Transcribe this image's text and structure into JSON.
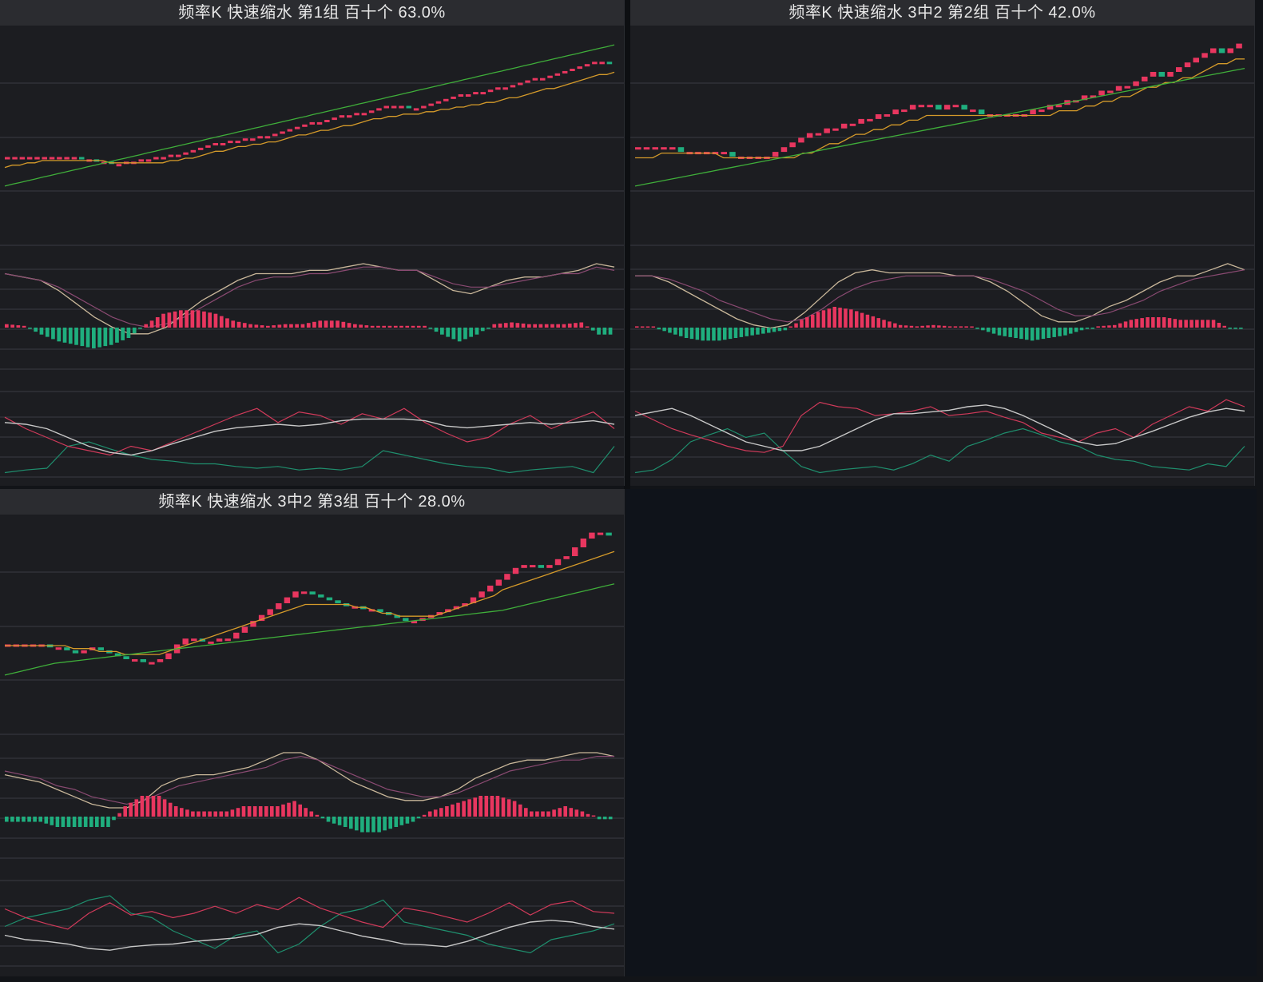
{
  "colors": {
    "up": "#e8365f",
    "down": "#1fae7e",
    "ma_short": "#d49a2a",
    "ma_long": "#3fae3a",
    "dif": "#c9b79a",
    "dea": "#8a4a72",
    "k_line": "#c8c8c8",
    "d_line": "#d03a5a",
    "j_line": "#1f8f6e",
    "grid": "#3a3c42",
    "panel_bg": "#1c1d21",
    "title_bg": "#2b2c30",
    "empty_bg": "#0f131a"
  },
  "chart_data": [
    {
      "type": "candlestick",
      "title": "频率K  快速缩水  第1组  百十个  63.0%",
      "price_close": [
        52,
        52,
        52,
        52,
        52,
        52,
        52,
        52,
        52,
        52,
        51,
        51,
        50,
        50,
        49,
        49,
        50,
        50,
        51,
        51,
        52,
        52,
        53,
        53,
        54,
        55,
        56,
        57,
        58,
        58,
        59,
        59,
        60,
        60,
        61,
        61,
        62,
        63,
        64,
        65,
        66,
        67,
        67,
        68,
        69,
        70,
        70,
        71,
        71,
        72,
        73,
        74,
        74,
        74,
        73,
        73,
        74,
        75,
        76,
        77,
        78,
        79,
        79,
        80,
        80,
        81,
        82,
        82,
        83,
        84,
        85,
        86,
        86,
        87,
        88,
        89,
        90,
        91,
        92,
        93,
        93,
        92
      ],
      "ma_short": [
        48,
        49,
        49,
        50,
        50,
        51,
        51,
        51,
        51,
        51,
        51,
        51,
        51,
        51,
        50,
        50,
        50,
        50,
        50,
        50,
        50,
        50,
        51,
        51,
        52,
        52,
        53,
        54,
        55,
        55,
        56,
        57,
        57,
        58,
        58,
        59,
        59,
        60,
        61,
        62,
        62,
        63,
        64,
        64,
        65,
        66,
        66,
        67,
        68,
        69,
        69,
        70,
        70,
        71,
        71,
        71,
        72,
        72,
        73,
        73,
        74,
        74,
        75,
        75,
        76,
        76,
        77,
        78,
        78,
        79,
        80,
        81,
        82,
        82,
        83,
        84,
        85,
        86,
        87,
        88,
        88,
        89
      ],
      "ma_long": [
        40,
        40.8,
        41.5,
        42.3,
        43,
        43.8,
        44.5,
        45.3,
        46,
        46.8,
        47.5,
        48.3,
        49,
        49.8,
        50.5,
        51.3,
        52,
        52.8,
        53.5,
        54.3,
        55,
        55.8,
        56.5,
        57.3,
        58,
        58.8,
        59.5,
        60.3,
        61,
        61.8,
        62.5,
        63.3,
        64,
        64.8,
        65.5,
        66.3,
        67,
        67.8,
        68.5,
        69.3,
        70,
        70.8,
        71.5,
        72.3,
        73,
        73.8,
        74.5,
        75.3,
        76,
        76.8,
        77.5,
        78.3,
        79,
        79.8,
        80.5,
        81.3,
        82,
        82.8,
        83.5,
        84.3,
        85,
        85.8,
        86.5,
        87.3,
        88,
        88.8,
        89.5,
        90.3,
        91,
        91.8,
        92.5,
        93.3,
        94,
        94.8,
        95.5,
        96.3,
        97,
        97.8,
        98.5,
        99.3,
        100,
        100.8
      ],
      "macd_dif": [
        0.8,
        0.7,
        0.6,
        0.3,
        -0.1,
        -0.5,
        -0.8,
        -1,
        -1,
        -0.8,
        -0.4,
        0,
        0.3,
        0.6,
        0.8,
        0.8,
        0.8,
        0.9,
        0.9,
        1,
        1.1,
        1,
        0.9,
        0.9,
        0.6,
        0.3,
        0.2,
        0.4,
        0.6,
        0.7,
        0.7,
        0.8,
        0.9,
        1.1,
        1
      ],
      "macd_dea": [
        0.8,
        0.7,
        0.6,
        0.4,
        0.1,
        -0.2,
        -0.5,
        -0.7,
        -0.8,
        -0.7,
        -0.5,
        -0.2,
        0.1,
        0.4,
        0.6,
        0.7,
        0.7,
        0.8,
        0.8,
        0.9,
        1,
        1,
        0.9,
        0.9,
        0.7,
        0.5,
        0.4,
        0.4,
        0.5,
        0.6,
        0.7,
        0.8,
        0.8,
        1,
        0.9
      ],
      "macd_hist": [
        0.1,
        0.05,
        -0.2,
        -0.4,
        -0.5,
        -0.6,
        -0.5,
        -0.3,
        0.1,
        0.4,
        0.5,
        0.5,
        0.4,
        0.2,
        0.1,
        0.05,
        0.1,
        0.1,
        0.2,
        0.2,
        0.1,
        0.05,
        0.05,
        0.05,
        0.05,
        -0.2,
        -0.4,
        -0.2,
        0.1,
        0.15,
        0.1,
        0.1,
        0.1,
        0.15,
        -0.2
      ],
      "kdj_k": [
        62,
        60,
        55,
        45,
        35,
        28,
        25,
        30,
        38,
        45,
        52,
        56,
        58,
        60,
        58,
        60,
        64,
        66,
        66,
        66,
        64,
        58,
        56,
        58,
        60,
        62,
        60,
        62,
        64,
        60
      ],
      "kdj_d": [
        68,
        55,
        45,
        35,
        30,
        25,
        35,
        30,
        40,
        50,
        60,
        70,
        78,
        62,
        74,
        70,
        60,
        72,
        66,
        78,
        62,
        50,
        40,
        45,
        60,
        70,
        55,
        65,
        74,
        55
      ],
      "kdj_j": [
        5,
        8,
        10,
        35,
        40,
        32,
        25,
        20,
        18,
        15,
        15,
        12,
        10,
        12,
        8,
        10,
        8,
        12,
        30,
        25,
        20,
        15,
        12,
        10,
        5,
        8,
        10,
        12,
        5,
        35
      ]
    },
    {
      "type": "candlestick",
      "title": "频率K  快速缩水  3中2 第2组  百十个  42.0%",
      "price_close": [
        50,
        50,
        50,
        50,
        50,
        49,
        49,
        49,
        49,
        49,
        49,
        48,
        48,
        48,
        48,
        48,
        49,
        50,
        51,
        52,
        53,
        53,
        54,
        54,
        55,
        55,
        56,
        56,
        57,
        57,
        58,
        58,
        59,
        59,
        59,
        58,
        59,
        59,
        58,
        58,
        57,
        57,
        57,
        57,
        57,
        57,
        58,
        58,
        59,
        59,
        60,
        60,
        61,
        61,
        62,
        62,
        63,
        63,
        64,
        65,
        66,
        65,
        66,
        67,
        68,
        69,
        70,
        71,
        70,
        71,
        72
      ],
      "ma_short": [
        48,
        48,
        48,
        49,
        49,
        49,
        49,
        49,
        49,
        49,
        48,
        48,
        48,
        48,
        48,
        48,
        48,
        48,
        48,
        49,
        49,
        50,
        51,
        51,
        52,
        53,
        53,
        54,
        54,
        55,
        55,
        56,
        56,
        57,
        57,
        57,
        57,
        57,
        57,
        57,
        57,
        57,
        57,
        57,
        57,
        57,
        57,
        57,
        58,
        58,
        58,
        59,
        59,
        60,
        60,
        61,
        61,
        62,
        63,
        63,
        64,
        64,
        65,
        65,
        66,
        67,
        68,
        68,
        69,
        69
      ],
      "ma_long": [
        42,
        42.5,
        43,
        43.5,
        44,
        44.5,
        45,
        45.5,
        46,
        46.5,
        47,
        47.5,
        48,
        48.5,
        49,
        49.5,
        50,
        50.5,
        51,
        51.5,
        52,
        52.5,
        53,
        53.5,
        54,
        54.5,
        55,
        55.5,
        56,
        56.5,
        57,
        57.5,
        58,
        58.5,
        59,
        59.5,
        60,
        60.5,
        61,
        61.5,
        62,
        62.5,
        63,
        63.5,
        64,
        64.5,
        65,
        65.5,
        66,
        66.5,
        67
      ],
      "macd_dif": [
        0.8,
        0.8,
        0.6,
        0.3,
        0,
        -0.3,
        -0.6,
        -0.8,
        -0.9,
        -0.8,
        -0.4,
        0.1,
        0.6,
        0.9,
        1,
        0.9,
        0.9,
        0.9,
        0.9,
        0.8,
        0.8,
        0.6,
        0.3,
        -0.1,
        -0.5,
        -0.7,
        -0.7,
        -0.5,
        -0.2,
        0,
        0.3,
        0.6,
        0.8,
        0.8,
        1,
        1.2,
        1
      ],
      "macd_dea": [
        0.8,
        0.8,
        0.7,
        0.5,
        0.3,
        0,
        -0.2,
        -0.4,
        -0.6,
        -0.7,
        -0.6,
        -0.3,
        0.1,
        0.4,
        0.6,
        0.7,
        0.8,
        0.8,
        0.8,
        0.8,
        0.8,
        0.7,
        0.5,
        0.3,
        0,
        -0.3,
        -0.5,
        -0.5,
        -0.4,
        -0.2,
        0,
        0.3,
        0.5,
        0.7,
        0.8,
        0.9,
        1
      ],
      "macd_hist": [
        0.05,
        0,
        -0.2,
        -0.4,
        -0.5,
        -0.5,
        -0.4,
        -0.3,
        -0.2,
        -0.1,
        0.3,
        0.6,
        0.8,
        0.7,
        0.5,
        0.3,
        0.1,
        0.05,
        0.1,
        0.05,
        0.05,
        -0.1,
        -0.3,
        -0.4,
        -0.5,
        -0.4,
        -0.3,
        -0.1,
        0.05,
        0.1,
        0.3,
        0.4,
        0.4,
        0.3,
        0.3,
        0.3,
        -0.05
      ],
      "kdj_k": [
        70,
        74,
        78,
        70,
        60,
        50,
        40,
        35,
        30,
        30,
        35,
        45,
        55,
        65,
        72,
        72,
        74,
        76,
        80,
        82,
        78,
        70,
        60,
        50,
        40,
        36,
        38,
        45,
        52,
        60,
        68,
        74,
        78,
        75
      ],
      "kdj_d": [
        75,
        65,
        55,
        48,
        42,
        35,
        30,
        28,
        35,
        70,
        85,
        80,
        78,
        70,
        72,
        75,
        80,
        70,
        72,
        75,
        68,
        62,
        50,
        45,
        40,
        50,
        55,
        45,
        60,
        70,
        80,
        75,
        88,
        80
      ],
      "kdj_j": [
        5,
        8,
        20,
        40,
        48,
        55,
        45,
        50,
        30,
        12,
        5,
        8,
        10,
        12,
        8,
        15,
        25,
        18,
        35,
        42,
        50,
        55,
        48,
        40,
        35,
        25,
        20,
        18,
        12,
        10,
        8,
        15,
        12,
        35
      ]
    },
    {
      "type": "candlestick",
      "title": "频率K  快速缩水  3中2 第3组  百十个  28.0%",
      "price_close": [
        40,
        40,
        40,
        40,
        40,
        39,
        39,
        38,
        37,
        38,
        39,
        38,
        37,
        36,
        35,
        35,
        34,
        34,
        35,
        37,
        40,
        42,
        42,
        41,
        41,
        42,
        42,
        44,
        46,
        48,
        50,
        52,
        54,
        56,
        58,
        58,
        57,
        56,
        55,
        54,
        53,
        53,
        52,
        52,
        51,
        50,
        49,
        48,
        48,
        49,
        50,
        51,
        52,
        53,
        54,
        56,
        58,
        60,
        62,
        64,
        66,
        67,
        67,
        66,
        67,
        69,
        70,
        73,
        76,
        78,
        78,
        77
      ],
      "ma_short": [
        40,
        40,
        40,
        40,
        40,
        40,
        40,
        40,
        39,
        39,
        39,
        38,
        38,
        38,
        37,
        37,
        37,
        37,
        37,
        38,
        39,
        40,
        41,
        42,
        43,
        44,
        45,
        46,
        47,
        48,
        49,
        50,
        51,
        52,
        53,
        54,
        54,
        54,
        54,
        54,
        54,
        53,
        53,
        52,
        51,
        51,
        50,
        50,
        50,
        50,
        50,
        51,
        52,
        53,
        54,
        55,
        56,
        57,
        59,
        60,
        61,
        62,
        63,
        64,
        65,
        66,
        67,
        68,
        69,
        70,
        71,
        72
      ],
      "ma_long": [
        30,
        31,
        32,
        33,
        34,
        34.5,
        35,
        35.5,
        36,
        36.5,
        37,
        37.5,
        38,
        38.5,
        39,
        39.5,
        40,
        40.5,
        41,
        41.5,
        42,
        42.5,
        43,
        43.5,
        44,
        44.5,
        45,
        45.5,
        46,
        46.5,
        47,
        47.5,
        48,
        48.5,
        49,
        49.5,
        50,
        50.5,
        51,
        51.5,
        52,
        53,
        54,
        55,
        56,
        57,
        58,
        59,
        60,
        61
      ],
      "macd_dif": [
        0.4,
        0.3,
        0.2,
        0,
        -0.2,
        -0.4,
        -0.5,
        -0.5,
        -0.3,
        0.1,
        0.3,
        0.4,
        0.4,
        0.5,
        0.6,
        0.8,
        1,
        1,
        0.8,
        0.5,
        0.2,
        0,
        -0.2,
        -0.3,
        -0.3,
        -0.2,
        0,
        0.3,
        0.5,
        0.7,
        0.8,
        0.8,
        0.9,
        1,
        1,
        0.9
      ],
      "macd_dea": [
        0.5,
        0.4,
        0.3,
        0.1,
        0,
        -0.2,
        -0.3,
        -0.4,
        -0.3,
        -0.1,
        0.1,
        0.2,
        0.3,
        0.4,
        0.5,
        0.6,
        0.8,
        0.9,
        0.8,
        0.6,
        0.4,
        0.2,
        0,
        -0.1,
        -0.2,
        -0.2,
        -0.1,
        0.1,
        0.3,
        0.5,
        0.6,
        0.7,
        0.8,
        0.8,
        0.9,
        0.9
      ],
      "macd_hist": [
        -0.1,
        -0.1,
        -0.1,
        -0.2,
        -0.2,
        -0.2,
        -0.2,
        0.2,
        0.4,
        0.4,
        0.2,
        0.1,
        0.1,
        0.1,
        0.2,
        0.2,
        0.2,
        0.3,
        0.1,
        -0.1,
        -0.2,
        -0.3,
        -0.3,
        -0.2,
        -0.1,
        0.1,
        0.2,
        0.3,
        0.4,
        0.4,
        0.3,
        0.1,
        0.1,
        0.2,
        0.1,
        -0.05
      ],
      "kdj_k": [
        35,
        30,
        28,
        25,
        20,
        18,
        22,
        24,
        25,
        28,
        30,
        32,
        36,
        44,
        48,
        46,
        40,
        34,
        30,
        25,
        24,
        22,
        28,
        36,
        44,
        50,
        52,
        50,
        45,
        42
      ],
      "kdj_d": [
        65,
        55,
        48,
        42,
        60,
        72,
        58,
        62,
        55,
        60,
        68,
        60,
        70,
        64,
        78,
        66,
        58,
        50,
        44,
        66,
        62,
        56,
        50,
        60,
        72,
        58,
        70,
        74,
        62,
        60
      ],
      "kdj_j": [
        45,
        55,
        60,
        65,
        75,
        80,
        60,
        55,
        40,
        30,
        20,
        35,
        40,
        15,
        25,
        45,
        60,
        65,
        75,
        50,
        45,
        40,
        35,
        25,
        20,
        15,
        30,
        35,
        40,
        48
      ]
    }
  ]
}
